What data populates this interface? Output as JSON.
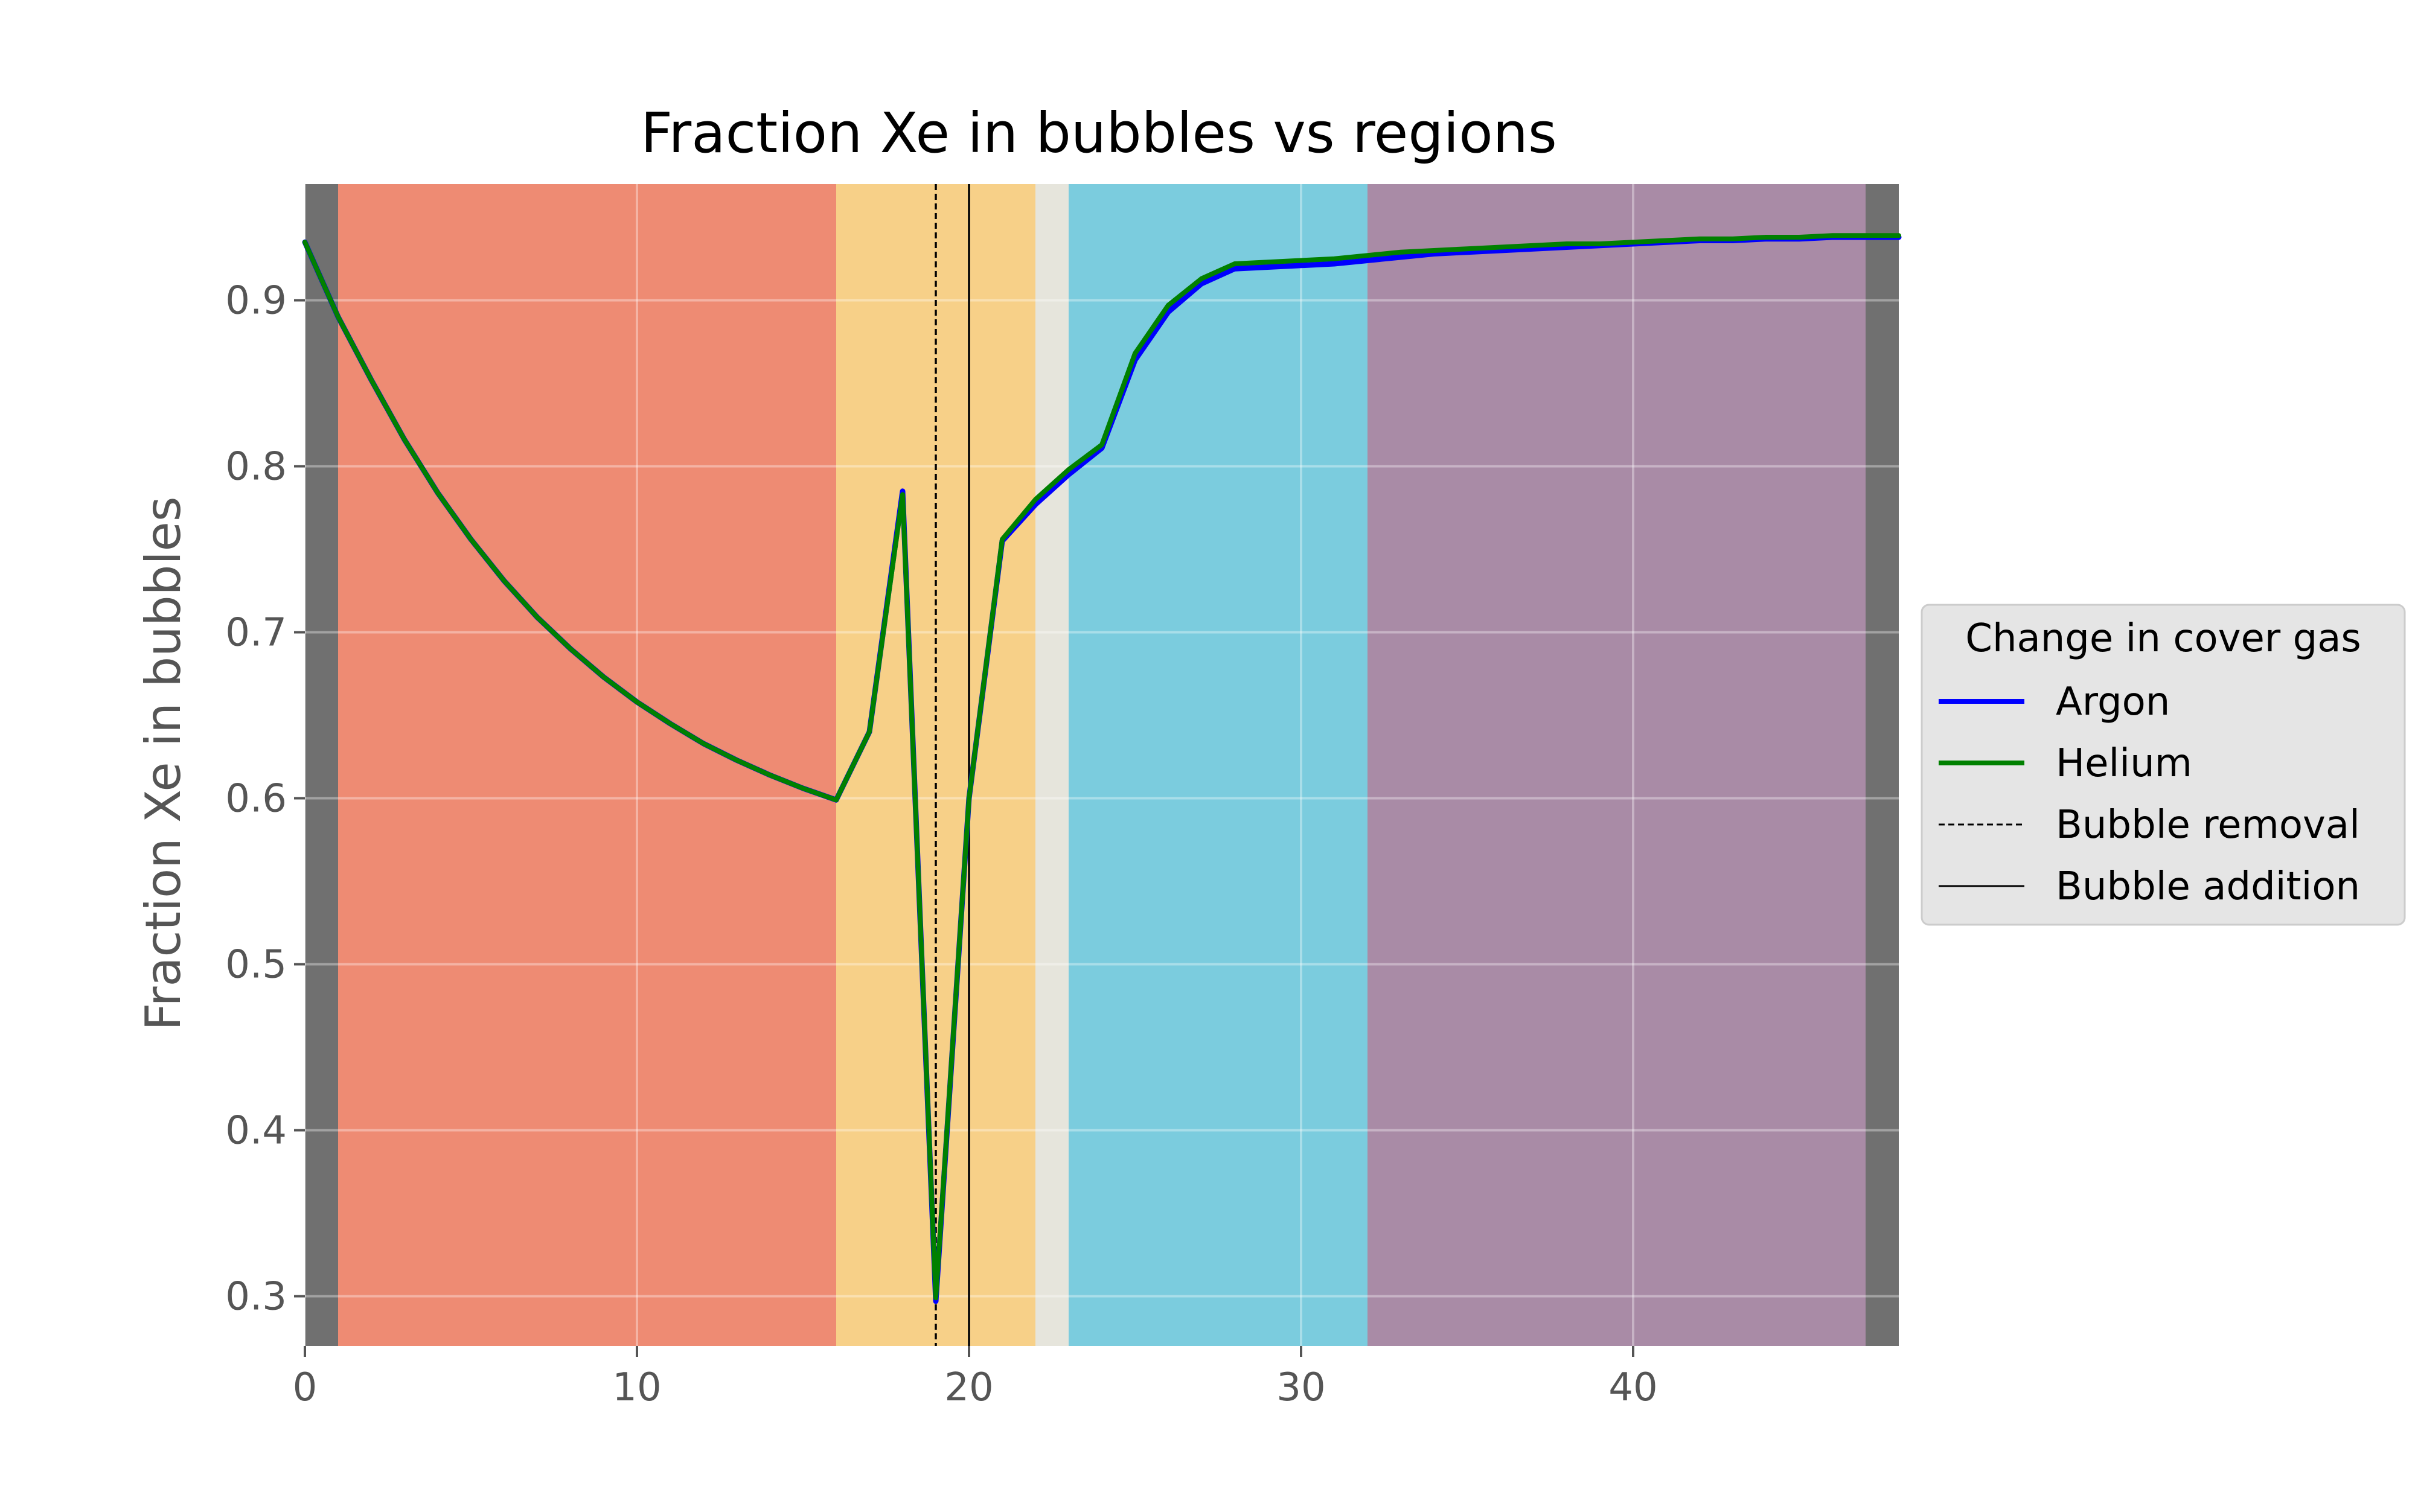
{
  "chart_data": {
    "type": "line",
    "title": "Fraction Xe in bubbles vs regions",
    "xlabel": "",
    "ylabel": "Fraction Xe in bubbles",
    "xlim": [
      0,
      48
    ],
    "ylim": [
      0.27,
      0.97
    ],
    "x_ticks": [
      0,
      10,
      20,
      30,
      40
    ],
    "y_ticks": [
      0.3,
      0.4,
      0.5,
      0.6,
      0.7,
      0.8,
      0.9
    ],
    "grid": true,
    "regions": [
      {
        "x0": 0,
        "x1": 1,
        "color": "#707070"
      },
      {
        "x0": 1,
        "x1": 16,
        "color": "#ee8b73"
      },
      {
        "x0": 16,
        "x1": 22,
        "color": "#f7d088"
      },
      {
        "x0": 22,
        "x1": 23,
        "color": "#e6e5dc"
      },
      {
        "x0": 23,
        "x1": 32,
        "color": "#7bccde"
      },
      {
        "x0": 32,
        "x1": 47,
        "color": "#a98ba6"
      },
      {
        "x0": 47,
        "x1": 48,
        "color": "#707070"
      }
    ],
    "vlines": [
      {
        "x": 19,
        "style": "dashed",
        "name": "Bubble removal"
      },
      {
        "x": 20,
        "style": "solid",
        "name": "Bubble addition"
      }
    ],
    "series": [
      {
        "name": "Argon",
        "color": "#0000ff",
        "x": [
          0,
          1,
          2,
          3,
          4,
          5,
          6,
          7,
          8,
          9,
          10,
          11,
          12,
          13,
          14,
          15,
          16,
          17,
          18,
          19,
          20,
          21,
          22,
          23,
          24,
          25,
          26,
          27,
          28,
          29,
          30,
          31,
          32,
          33,
          34,
          35,
          36,
          37,
          38,
          39,
          40,
          41,
          42,
          43,
          44,
          45,
          46,
          47,
          48
        ],
        "y": [
          0.935,
          0.89,
          0.852,
          0.816,
          0.784,
          0.756,
          0.731,
          0.709,
          0.69,
          0.673,
          0.658,
          0.645,
          0.633,
          0.623,
          0.614,
          0.606,
          0.599,
          0.64,
          0.785,
          0.297,
          0.6,
          0.755,
          0.777,
          0.795,
          0.811,
          0.864,
          0.893,
          0.91,
          0.919,
          0.92,
          0.921,
          0.922,
          0.924,
          0.926,
          0.928,
          0.929,
          0.93,
          0.931,
          0.932,
          0.933,
          0.934,
          0.935,
          0.936,
          0.936,
          0.937,
          0.937,
          0.938,
          0.938,
          0.938
        ]
      },
      {
        "name": "Helium",
        "color": "#008000",
        "x": [
          0,
          1,
          2,
          3,
          4,
          5,
          6,
          7,
          8,
          9,
          10,
          11,
          12,
          13,
          14,
          15,
          16,
          17,
          18,
          19,
          20,
          21,
          22,
          23,
          24,
          25,
          26,
          27,
          28,
          29,
          30,
          31,
          32,
          33,
          34,
          35,
          36,
          37,
          38,
          39,
          40,
          41,
          42,
          43,
          44,
          45,
          46,
          47,
          48
        ],
        "y": [
          0.935,
          0.89,
          0.852,
          0.816,
          0.784,
          0.756,
          0.731,
          0.709,
          0.69,
          0.673,
          0.658,
          0.645,
          0.633,
          0.623,
          0.614,
          0.606,
          0.599,
          0.64,
          0.783,
          0.299,
          0.6,
          0.756,
          0.78,
          0.798,
          0.813,
          0.868,
          0.897,
          0.913,
          0.922,
          0.923,
          0.924,
          0.925,
          0.927,
          0.929,
          0.93,
          0.931,
          0.932,
          0.933,
          0.934,
          0.934,
          0.935,
          0.936,
          0.937,
          0.937,
          0.938,
          0.938,
          0.939,
          0.939,
          0.939
        ]
      }
    ],
    "legend": {
      "placement": "outside-right",
      "title": "Change in cover gas",
      "entries": [
        {
          "label": "Argon",
          "color": "#0000ff",
          "style": "solid-thick"
        },
        {
          "label": "Helium",
          "color": "#008000",
          "style": "solid-thick"
        },
        {
          "label": "Bubble removal",
          "color": "#000000",
          "style": "dashed"
        },
        {
          "label": "Bubble addition",
          "color": "#000000",
          "style": "solid"
        }
      ]
    }
  }
}
